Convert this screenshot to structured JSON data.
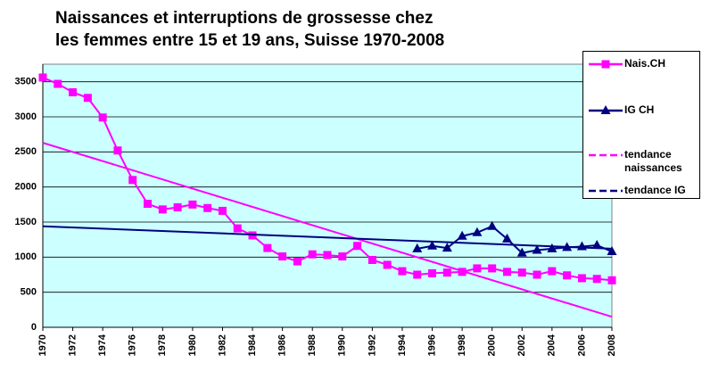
{
  "chart_data": {
    "type": "line",
    "title": [
      "Naissances et interruptions de grossesse chez",
      "les femmes entre 15 et 19 ans, Suisse 1970-2008"
    ],
    "x": [
      1970,
      1971,
      1972,
      1973,
      1974,
      1975,
      1976,
      1977,
      1978,
      1979,
      1980,
      1981,
      1982,
      1983,
      1984,
      1985,
      1986,
      1987,
      1988,
      1989,
      1990,
      1991,
      1992,
      1993,
      1994,
      1995,
      1996,
      1997,
      1998,
      1999,
      2000,
      2001,
      2002,
      2003,
      2004,
      2005,
      2006,
      2007,
      2008
    ],
    "series": [
      {
        "name": "Nais.CH",
        "color": "#ff00ff",
        "marker": "square",
        "values": [
          3560,
          3470,
          3350,
          3270,
          2990,
          2520,
          2100,
          1760,
          1680,
          1710,
          1750,
          1700,
          1660,
          1410,
          1310,
          1130,
          1010,
          940,
          1040,
          1030,
          1010,
          1160,
          960,
          890,
          800,
          750,
          770,
          780,
          790,
          840,
          840,
          790,
          780,
          750,
          800,
          740,
          700,
          690,
          670
        ]
      },
      {
        "name": "IG CH",
        "color": "#000080",
        "marker": "triangle",
        "values": [
          null,
          null,
          null,
          null,
          null,
          null,
          null,
          null,
          null,
          null,
          null,
          null,
          null,
          null,
          null,
          null,
          null,
          null,
          null,
          null,
          null,
          null,
          null,
          null,
          null,
          1120,
          1160,
          1130,
          1300,
          1350,
          1440,
          1260,
          1060,
          1100,
          1120,
          1140,
          1150,
          1170,
          1080
        ]
      },
      {
        "name": "tendance naissances",
        "color": "#ff00ff",
        "marker": "none",
        "dashed_legend": true,
        "x": [
          1970,
          2008
        ],
        "values": [
          2630,
          150
        ]
      },
      {
        "name": "tendance IG",
        "color": "#000080",
        "marker": "none",
        "dashed_legend": true,
        "x": [
          1970,
          2008
        ],
        "values": [
          1440,
          1120
        ]
      }
    ],
    "xlim": [
      1970,
      2008
    ],
    "xticks": [
      1970,
      1972,
      1974,
      1976,
      1978,
      1980,
      1982,
      1984,
      1986,
      1988,
      1990,
      1992,
      1994,
      1996,
      1998,
      2000,
      2002,
      2004,
      2006,
      2008
    ],
    "ylim": [
      0,
      3750
    ],
    "yticks": [
      0,
      500,
      1000,
      1500,
      2000,
      2500,
      3000,
      3500
    ],
    "grid": true,
    "background": "#ccffff",
    "legend": "right"
  }
}
